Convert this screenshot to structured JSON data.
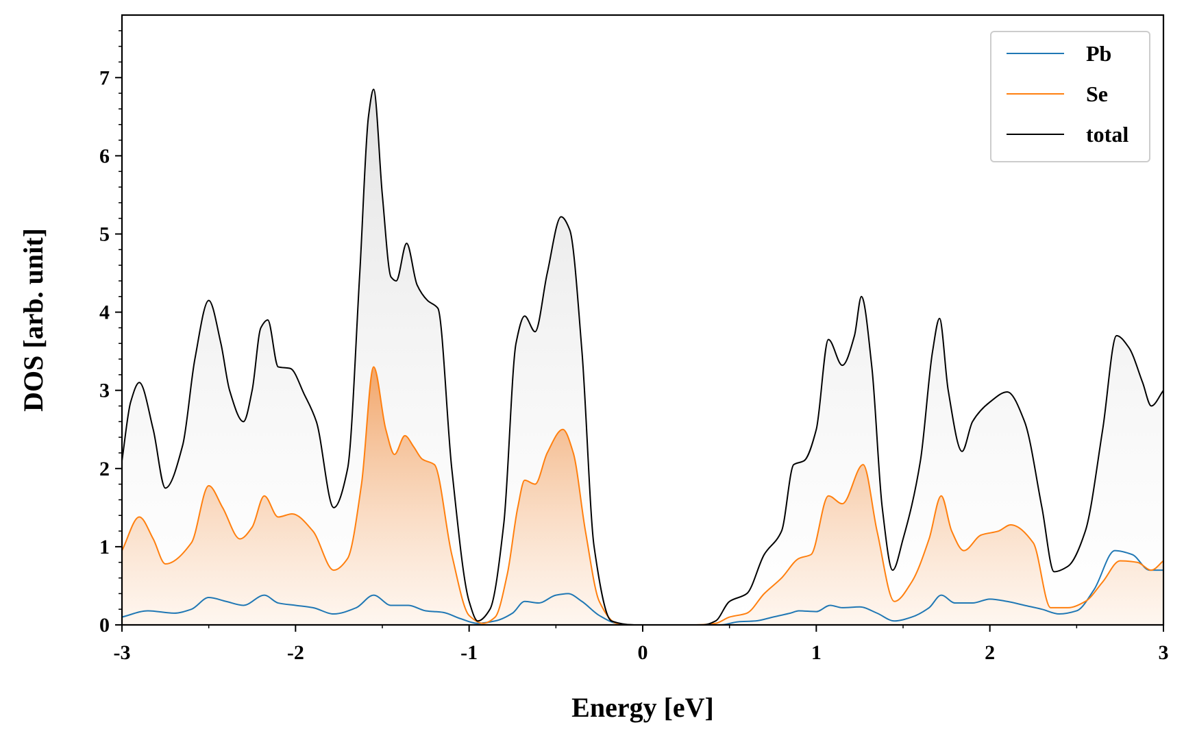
{
  "chart_data": {
    "type": "line",
    "title": "",
    "xlabel": "Energy [eV]",
    "ylabel": "DOS [arb. unit]",
    "xlim": [
      -3,
      3
    ],
    "ylim": [
      0,
      7.8
    ],
    "x_ticks": [
      "-3",
      "-2",
      "-1",
      "0",
      "1",
      "2",
      "3"
    ],
    "y_ticks": [
      "0",
      "1",
      "2",
      "3",
      "4",
      "5",
      "6",
      "7"
    ],
    "x_tick_values": [
      -3,
      -2,
      -1,
      0,
      1,
      2,
      3
    ],
    "y_tick_values": [
      0,
      1,
      2,
      3,
      4,
      5,
      6,
      7
    ],
    "legend_position": "top-right",
    "grid": false,
    "fill_under_curves": true,
    "series": [
      {
        "name": "Pb",
        "color": "#1f77b4",
        "fill": "none",
        "points": [
          [
            -3.0,
            0.1
          ],
          [
            -2.85,
            0.18
          ],
          [
            -2.7,
            0.15
          ],
          [
            -2.6,
            0.2
          ],
          [
            -2.5,
            0.35
          ],
          [
            -2.4,
            0.3
          ],
          [
            -2.3,
            0.25
          ],
          [
            -2.18,
            0.38
          ],
          [
            -2.1,
            0.28
          ],
          [
            -2.0,
            0.25
          ],
          [
            -1.9,
            0.22
          ],
          [
            -1.78,
            0.14
          ],
          [
            -1.65,
            0.22
          ],
          [
            -1.55,
            0.38
          ],
          [
            -1.45,
            0.25
          ],
          [
            -1.35,
            0.25
          ],
          [
            -1.25,
            0.18
          ],
          [
            -1.15,
            0.16
          ],
          [
            -1.05,
            0.08
          ],
          [
            -0.95,
            0.02
          ],
          [
            -0.85,
            0.05
          ],
          [
            -0.75,
            0.15
          ],
          [
            -0.68,
            0.3
          ],
          [
            -0.6,
            0.28
          ],
          [
            -0.5,
            0.38
          ],
          [
            -0.43,
            0.4
          ],
          [
            -0.35,
            0.3
          ],
          [
            -0.25,
            0.12
          ],
          [
            -0.15,
            0.02
          ],
          [
            -0.05,
            0.0
          ],
          [
            0.3,
            0.0
          ],
          [
            0.45,
            0.0
          ],
          [
            0.55,
            0.04
          ],
          [
            0.65,
            0.05
          ],
          [
            0.75,
            0.1
          ],
          [
            0.85,
            0.15
          ],
          [
            0.9,
            0.18
          ],
          [
            1.0,
            0.17
          ],
          [
            1.08,
            0.25
          ],
          [
            1.15,
            0.22
          ],
          [
            1.25,
            0.23
          ],
          [
            1.35,
            0.15
          ],
          [
            1.45,
            0.05
          ],
          [
            1.55,
            0.1
          ],
          [
            1.65,
            0.22
          ],
          [
            1.72,
            0.38
          ],
          [
            1.8,
            0.28
          ],
          [
            1.9,
            0.28
          ],
          [
            2.0,
            0.33
          ],
          [
            2.1,
            0.3
          ],
          [
            2.2,
            0.25
          ],
          [
            2.3,
            0.2
          ],
          [
            2.4,
            0.14
          ],
          [
            2.5,
            0.18
          ],
          [
            2.6,
            0.45
          ],
          [
            2.72,
            0.95
          ],
          [
            2.82,
            0.9
          ],
          [
            2.92,
            0.7
          ],
          [
            3.0,
            0.7
          ]
        ]
      },
      {
        "name": "Se",
        "color": "#ff7f0e",
        "fill": "orange-gradient",
        "points": [
          [
            -3.0,
            0.95
          ],
          [
            -2.9,
            1.38
          ],
          [
            -2.82,
            1.1
          ],
          [
            -2.75,
            0.78
          ],
          [
            -2.6,
            1.05
          ],
          [
            -2.5,
            1.78
          ],
          [
            -2.42,
            1.5
          ],
          [
            -2.32,
            1.1
          ],
          [
            -2.25,
            1.25
          ],
          [
            -2.18,
            1.65
          ],
          [
            -2.1,
            1.38
          ],
          [
            -2.02,
            1.42
          ],
          [
            -1.9,
            1.2
          ],
          [
            -1.78,
            0.7
          ],
          [
            -1.7,
            0.85
          ],
          [
            -1.62,
            1.8
          ],
          [
            -1.55,
            3.3
          ],
          [
            -1.48,
            2.5
          ],
          [
            -1.43,
            2.18
          ],
          [
            -1.37,
            2.42
          ],
          [
            -1.32,
            2.28
          ],
          [
            -1.27,
            2.12
          ],
          [
            -1.2,
            2.05
          ],
          [
            -1.1,
            0.9
          ],
          [
            -1.0,
            0.12
          ],
          [
            -0.92,
            0.02
          ],
          [
            -0.85,
            0.1
          ],
          [
            -0.78,
            0.65
          ],
          [
            -0.72,
            1.5
          ],
          [
            -0.68,
            1.85
          ],
          [
            -0.62,
            1.8
          ],
          [
            -0.55,
            2.2
          ],
          [
            -0.46,
            2.5
          ],
          [
            -0.4,
            2.2
          ],
          [
            -0.33,
            1.2
          ],
          [
            -0.25,
            0.3
          ],
          [
            -0.15,
            0.02
          ],
          [
            -0.05,
            0.0
          ],
          [
            0.3,
            0.0
          ],
          [
            0.42,
            0.02
          ],
          [
            0.5,
            0.1
          ],
          [
            0.6,
            0.15
          ],
          [
            0.7,
            0.4
          ],
          [
            0.8,
            0.6
          ],
          [
            0.9,
            0.85
          ],
          [
            0.97,
            0.9
          ],
          [
            1.07,
            1.65
          ],
          [
            1.15,
            1.55
          ],
          [
            1.27,
            2.05
          ],
          [
            1.35,
            1.2
          ],
          [
            1.45,
            0.3
          ],
          [
            1.55,
            0.55
          ],
          [
            1.65,
            1.1
          ],
          [
            1.72,
            1.65
          ],
          [
            1.78,
            1.2
          ],
          [
            1.85,
            0.95
          ],
          [
            1.95,
            1.15
          ],
          [
            2.05,
            1.2
          ],
          [
            2.12,
            1.28
          ],
          [
            2.25,
            1.05
          ],
          [
            2.35,
            0.22
          ],
          [
            2.45,
            0.22
          ],
          [
            2.55,
            0.3
          ],
          [
            2.65,
            0.55
          ],
          [
            2.75,
            0.82
          ],
          [
            2.85,
            0.8
          ],
          [
            2.93,
            0.7
          ],
          [
            3.0,
            0.82
          ]
        ]
      },
      {
        "name": "total",
        "color": "#000000",
        "fill": "gray-gradient",
        "points": [
          [
            -3.0,
            2.1
          ],
          [
            -2.95,
            2.85
          ],
          [
            -2.9,
            3.1
          ],
          [
            -2.82,
            2.5
          ],
          [
            -2.75,
            1.75
          ],
          [
            -2.65,
            2.3
          ],
          [
            -2.58,
            3.4
          ],
          [
            -2.5,
            4.15
          ],
          [
            -2.43,
            3.6
          ],
          [
            -2.38,
            3.0
          ],
          [
            -2.3,
            2.6
          ],
          [
            -2.25,
            3.0
          ],
          [
            -2.2,
            3.8
          ],
          [
            -2.16,
            3.9
          ],
          [
            -2.1,
            3.3
          ],
          [
            -2.03,
            3.28
          ],
          [
            -1.95,
            2.95
          ],
          [
            -1.88,
            2.6
          ],
          [
            -1.78,
            1.5
          ],
          [
            -1.7,
            2.0
          ],
          [
            -1.63,
            4.5
          ],
          [
            -1.58,
            6.5
          ],
          [
            -1.55,
            6.85
          ],
          [
            -1.5,
            5.5
          ],
          [
            -1.45,
            4.45
          ],
          [
            -1.42,
            4.4
          ],
          [
            -1.36,
            4.88
          ],
          [
            -1.3,
            4.35
          ],
          [
            -1.24,
            4.15
          ],
          [
            -1.18,
            4.05
          ],
          [
            -1.1,
            2.0
          ],
          [
            -1.0,
            0.3
          ],
          [
            -0.95,
            0.05
          ],
          [
            -0.88,
            0.2
          ],
          [
            -0.8,
            1.3
          ],
          [
            -0.73,
            3.6
          ],
          [
            -0.68,
            3.95
          ],
          [
            -0.62,
            3.75
          ],
          [
            -0.55,
            4.5
          ],
          [
            -0.47,
            5.22
          ],
          [
            -0.42,
            5.05
          ],
          [
            -0.35,
            3.5
          ],
          [
            -0.28,
            1.0
          ],
          [
            -0.18,
            0.05
          ],
          [
            -0.05,
            0.0
          ],
          [
            0.35,
            0.0
          ],
          [
            0.42,
            0.05
          ],
          [
            0.5,
            0.3
          ],
          [
            0.6,
            0.4
          ],
          [
            0.7,
            0.9
          ],
          [
            0.8,
            1.2
          ],
          [
            0.87,
            2.05
          ],
          [
            0.93,
            2.1
          ],
          [
            1.0,
            2.5
          ],
          [
            1.07,
            3.65
          ],
          [
            1.15,
            3.32
          ],
          [
            1.22,
            3.7
          ],
          [
            1.26,
            4.2
          ],
          [
            1.32,
            3.3
          ],
          [
            1.38,
            1.5
          ],
          [
            1.44,
            0.7
          ],
          [
            1.5,
            1.1
          ],
          [
            1.6,
            2.1
          ],
          [
            1.67,
            3.5
          ],
          [
            1.71,
            3.92
          ],
          [
            1.76,
            3.0
          ],
          [
            1.84,
            2.22
          ],
          [
            1.9,
            2.6
          ],
          [
            2.0,
            2.85
          ],
          [
            2.1,
            2.98
          ],
          [
            2.2,
            2.6
          ],
          [
            2.3,
            1.5
          ],
          [
            2.37,
            0.68
          ],
          [
            2.45,
            0.75
          ],
          [
            2.55,
            1.2
          ],
          [
            2.65,
            2.5
          ],
          [
            2.73,
            3.7
          ],
          [
            2.8,
            3.55
          ],
          [
            2.88,
            3.1
          ],
          [
            2.93,
            2.8
          ],
          [
            3.0,
            3.0
          ]
        ]
      }
    ]
  }
}
